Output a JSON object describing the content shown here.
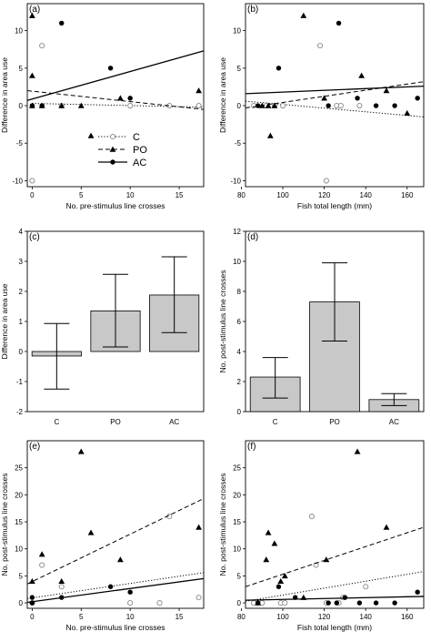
{
  "chart_data": [
    {
      "type": "scatter",
      "panel_label": "(a)",
      "xlabel": "No. pre-stimulus line crosses",
      "ylabel": "Difference in area use",
      "xlim": [
        -0.5,
        17.5
      ],
      "ylim": [
        -10.8,
        13.6
      ],
      "xticks": [
        0,
        5,
        10,
        15
      ],
      "yticks": [
        -10,
        -5,
        0,
        5,
        10
      ],
      "legend": {
        "placement": "lower-center",
        "entries": [
          "C",
          "PO",
          "AC"
        ]
      },
      "series": [
        {
          "name": "C",
          "marker": "open-circle",
          "line": "dotted",
          "points": [
            [
              0,
              -10
            ],
            [
              1,
              8
            ],
            [
              3,
              0
            ],
            [
              10,
              0
            ],
            [
              14,
              0
            ],
            [
              17,
              0
            ]
          ],
          "fit": [
            [
              0,
              0.3
            ],
            [
              17.5,
              -0.2
            ]
          ]
        },
        {
          "name": "PO",
          "marker": "triangle",
          "line": "dashed",
          "points": [
            [
              0,
              12
            ],
            [
              0,
              4
            ],
            [
              0,
              0
            ],
            [
              1,
              0
            ],
            [
              3,
              0
            ],
            [
              5,
              0
            ],
            [
              6,
              -4
            ],
            [
              9,
              1
            ],
            [
              17,
              2
            ]
          ],
          "fit": [
            [
              -0.5,
              2.0
            ],
            [
              17.5,
              -0.5
            ]
          ]
        },
        {
          "name": "AC",
          "marker": "filled-circle",
          "line": "solid",
          "points": [
            [
              0,
              0
            ],
            [
              1,
              0
            ],
            [
              3,
              11
            ],
            [
              8,
              5
            ],
            [
              10,
              1
            ]
          ],
          "fit": [
            [
              -0.5,
              0.7
            ],
            [
              17.5,
              7.3
            ]
          ]
        }
      ]
    },
    {
      "type": "scatter",
      "panel_label": "(b)",
      "xlabel": "Fish total length (mm)",
      "ylabel": "Difference in area use",
      "xlim": [
        82,
        168
      ],
      "ylim": [
        -10.8,
        13.6
      ],
      "xticks": [
        80,
        100,
        120,
        140,
        160
      ],
      "yticks": [
        -10,
        -5,
        0,
        5,
        10
      ],
      "series": [
        {
          "name": "C",
          "marker": "open-circle",
          "line": "dotted",
          "points": [
            [
              86,
              0
            ],
            [
              92,
              0
            ],
            [
              96,
              0
            ],
            [
              100,
              0
            ],
            [
              118,
              8
            ],
            [
              121,
              -10
            ],
            [
              126,
              0
            ],
            [
              128,
              0
            ],
            [
              137,
              0
            ]
          ],
          "fit": [
            [
              82,
              0.6
            ],
            [
              168,
              -1.5
            ]
          ]
        },
        {
          "name": "PO",
          "marker": "triangle",
          "line": "dashed",
          "points": [
            [
              90,
              0
            ],
            [
              93,
              0
            ],
            [
              94,
              -4
            ],
            [
              96,
              0
            ],
            [
              110,
              12
            ],
            [
              120,
              1
            ],
            [
              138,
              4
            ],
            [
              150,
              2
            ],
            [
              160,
              -1
            ]
          ],
          "fit": [
            [
              82,
              -0.3
            ],
            [
              168,
              3.2
            ]
          ]
        },
        {
          "name": "AC",
          "marker": "filled-circle",
          "line": "solid",
          "points": [
            [
              88,
              0
            ],
            [
              98,
              5
            ],
            [
              122,
              0
            ],
            [
              127,
              11
            ],
            [
              136,
              1
            ],
            [
              145,
              0
            ],
            [
              154,
              0
            ],
            [
              165,
              1
            ]
          ],
          "fit": [
            [
              82,
              1.6
            ],
            [
              168,
              2.6
            ]
          ]
        }
      ]
    },
    {
      "type": "bar",
      "panel_label": "(c)",
      "xlabel": "",
      "ylabel": "Difference in area use",
      "ylim": [
        -2,
        4
      ],
      "yticks": [
        -2,
        -1,
        0,
        1,
        2,
        3,
        4
      ],
      "categories": [
        "C",
        "PO",
        "AC"
      ],
      "values": [
        -0.15,
        1.35,
        1.88
      ],
      "error_low": [
        -1.25,
        0.15,
        0.63
      ],
      "error_high": [
        0.93,
        2.57,
        3.15
      ]
    },
    {
      "type": "bar",
      "panel_label": "(d)",
      "xlabel": "",
      "ylabel": "No. post-stimulus line crosses",
      "ylim": [
        0,
        12
      ],
      "yticks": [
        0,
        2,
        4,
        6,
        8,
        10,
        12
      ],
      "categories": [
        "C",
        "PO",
        "AC"
      ],
      "values": [
        2.3,
        7.3,
        0.8
      ],
      "error_low": [
        0.9,
        4.7,
        0.4
      ],
      "error_high": [
        3.6,
        9.9,
        1.2
      ]
    },
    {
      "type": "scatter",
      "panel_label": "(e)",
      "xlabel": "No. pre-stimulus line crosses",
      "ylabel": "No. post-stimulus line crosses",
      "xlim": [
        -0.5,
        17.5
      ],
      "ylim": [
        -1,
        30
      ],
      "xticks": [
        0,
        5,
        10,
        15
      ],
      "yticks": [
        0,
        5,
        10,
        15,
        20,
        25
      ],
      "series": [
        {
          "name": "C",
          "marker": "open-circle",
          "line": "dotted",
          "points": [
            [
              0,
              0
            ],
            [
              1,
              7
            ],
            [
              3,
              3
            ],
            [
              10,
              0
            ],
            [
              13,
              0
            ],
            [
              14,
              16
            ],
            [
              17,
              1
            ]
          ],
          "fit": [
            [
              -0.5,
              0.8
            ],
            [
              17.5,
              5.6
            ]
          ]
        },
        {
          "name": "PO",
          "marker": "triangle",
          "line": "dashed",
          "points": [
            [
              0,
              4
            ],
            [
              1,
              9
            ],
            [
              3,
              4
            ],
            [
              5,
              28
            ],
            [
              6,
              13
            ],
            [
              9,
              8
            ],
            [
              17,
              14
            ]
          ],
          "fit": [
            [
              -0.5,
              3.5
            ],
            [
              17.5,
              19.3
            ]
          ]
        },
        {
          "name": "AC",
          "marker": "filled-circle",
          "line": "solid",
          "points": [
            [
              0,
              0
            ],
            [
              0,
              1
            ],
            [
              3,
              1
            ],
            [
              8,
              3
            ],
            [
              10,
              2
            ]
          ],
          "fit": [
            [
              -0.5,
              0.1
            ],
            [
              17.5,
              4.5
            ]
          ]
        }
      ]
    },
    {
      "type": "scatter",
      "panel_label": "(f)",
      "xlabel": "Fish total length (mm)",
      "ylabel": "No. post-stimulus line crosses",
      "xlim": [
        82,
        168
      ],
      "ylim": [
        -1,
        30
      ],
      "xticks": [
        80,
        100,
        120,
        140,
        160
      ],
      "yticks": [
        0,
        5,
        10,
        15,
        20,
        25
      ],
      "series": [
        {
          "name": "C",
          "marker": "open-circle",
          "line": "dotted",
          "points": [
            [
              86,
              0
            ],
            [
              90,
              0
            ],
            [
              99,
              0
            ],
            [
              101,
              0
            ],
            [
              114,
              16
            ],
            [
              116,
              7
            ],
            [
              121,
              0
            ],
            [
              127,
              0
            ],
            [
              129,
              1
            ],
            [
              140,
              3
            ]
          ],
          "fit": [
            [
              82,
              0.3
            ],
            [
              168,
              5.8
            ]
          ]
        },
        {
          "name": "PO",
          "marker": "triangle",
          "line": "dashed",
          "points": [
            [
              88,
              0
            ],
            [
              92,
              8
            ],
            [
              93,
              13
            ],
            [
              96,
              11
            ],
            [
              99,
              4
            ],
            [
              101,
              5
            ],
            [
              110,
              1
            ],
            [
              121,
              8
            ],
            [
              136,
              28
            ],
            [
              150,
              14
            ]
          ],
          "fit": [
            [
              82,
              3.0
            ],
            [
              168,
              14.0
            ]
          ]
        },
        {
          "name": "AC",
          "marker": "filled-circle",
          "line": "solid",
          "points": [
            [
              88,
              0
            ],
            [
              98,
              3
            ],
            [
              106,
              1
            ],
            [
              122,
              0
            ],
            [
              126,
              0
            ],
            [
              130,
              1
            ],
            [
              137,
              0
            ],
            [
              145,
              0
            ],
            [
              154,
              0
            ],
            [
              165,
              2
            ]
          ],
          "fit": [
            [
              82,
              0.5
            ],
            [
              168,
              1.2
            ]
          ]
        }
      ]
    }
  ]
}
